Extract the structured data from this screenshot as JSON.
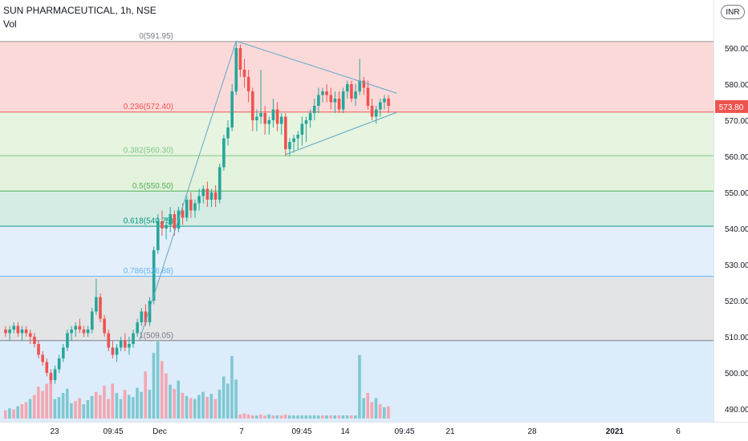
{
  "header": {
    "symbol": "SUN PHARMACEUTICAL, 1h, NSE",
    "volume_label": "Vol",
    "currency": "INR"
  },
  "colors": {
    "up": "#26a69a",
    "down": "#ef5350",
    "vol_up": "#7ec8d0",
    "vol_down": "#f4a6b0",
    "trendline": "#5fa8c8",
    "axis_text": "#131722",
    "last_price_bg": "#ef5350"
  },
  "chart_data": {
    "type": "candlestick",
    "y_axis": {
      "min": 488,
      "max": 595,
      "ticks": [
        "590.00",
        "580.00",
        "570.00",
        "560.00",
        "550.00",
        "540.00",
        "530.00",
        "520.00",
        "510.00",
        "500.00",
        "490.00"
      ]
    },
    "x_axis": {
      "ticks": [
        "23",
        "09:45",
        "Dec",
        "7",
        "09:45",
        "14",
        "09:45",
        "21",
        "28",
        "2021",
        "6"
      ]
    },
    "last_price": "573.80",
    "fib_levels": [
      {
        "label": "0(591.95)",
        "value": 591.95,
        "line": "#9e9e9e",
        "fill": "#fcd9d9",
        "text_color": "#787b86"
      },
      {
        "label": "0.236(572.40)",
        "value": 572.4,
        "line": "#ef5350",
        "fill": "#e6f4e0",
        "text_color": "#ef5350"
      },
      {
        "label": "0.382(560.30)",
        "value": 560.3,
        "line": "#81c784",
        "fill": "#e3f2dd",
        "text_color": "#81c784"
      },
      {
        "label": "0.5(550.50)",
        "value": 550.5,
        "line": "#4caf50",
        "fill": "#d4ece3",
        "text_color": "#4caf50"
      },
      {
        "label": "0.618(540.75)",
        "value": 540.75,
        "line": "#089981",
        "fill": "#e3effa",
        "text_color": "#089981"
      },
      {
        "label": "0.786(526.88)",
        "value": 526.88,
        "line": "#64b5f6",
        "fill": "#e3e4e6",
        "text_color": "#64b5f6"
      },
      {
        "label": "1(509.05)",
        "value": 509.05,
        "line": "#787b86",
        "fill": "#dcecfb",
        "text_color": "#787b86"
      }
    ],
    "candles": [
      [
        512,
        513,
        510,
        511
      ],
      [
        511,
        513,
        509,
        512
      ],
      [
        512,
        514,
        511,
        513
      ],
      [
        513,
        514,
        510,
        511
      ],
      [
        511,
        513,
        509,
        512
      ],
      [
        512,
        513,
        510,
        511
      ],
      [
        511,
        512,
        508,
        510
      ],
      [
        510,
        511,
        507,
        508
      ],
      [
        508,
        509,
        504,
        505
      ],
      [
        505,
        506,
        502,
        503
      ],
      [
        503,
        504,
        499,
        500
      ],
      [
        500,
        501,
        497,
        498
      ],
      [
        498,
        502,
        497,
        501
      ],
      [
        501,
        505,
        500,
        504
      ],
      [
        504,
        508,
        503,
        507
      ],
      [
        507,
        512,
        506,
        511
      ],
      [
        511,
        513,
        509,
        512
      ],
      [
        512,
        514,
        510,
        513
      ],
      [
        513,
        515,
        511,
        512
      ],
      [
        512,
        513,
        510,
        511
      ],
      [
        511,
        513,
        510,
        512
      ],
      [
        512,
        518,
        511,
        517
      ],
      [
        517,
        526,
        516,
        521
      ],
      [
        521,
        522,
        514,
        515
      ],
      [
        515,
        516,
        510,
        511
      ],
      [
        511,
        512,
        506,
        507
      ],
      [
        507,
        509,
        504,
        505
      ],
      [
        505,
        508,
        503,
        507
      ],
      [
        507,
        510,
        506,
        509
      ],
      [
        509,
        511,
        506,
        507
      ],
      [
        507,
        510,
        505,
        508
      ],
      [
        508,
        512,
        507,
        511
      ],
      [
        511,
        515,
        510,
        514
      ],
      [
        514,
        518,
        513,
        517
      ],
      [
        517,
        519,
        513,
        514
      ],
      [
        514,
        521,
        513,
        520
      ],
      [
        520,
        535,
        519,
        534
      ],
      [
        534,
        544,
        533,
        542
      ],
      [
        542,
        545,
        538,
        540
      ],
      [
        540,
        543,
        537,
        541
      ],
      [
        541,
        546,
        539,
        544
      ],
      [
        544,
        545,
        538,
        540
      ],
      [
        540,
        546,
        539,
        545
      ],
      [
        545,
        547,
        541,
        543
      ],
      [
        543,
        549,
        542,
        548
      ],
      [
        548,
        550,
        543,
        545
      ],
      [
        545,
        548,
        543,
        547
      ],
      [
        547,
        551,
        545,
        549
      ],
      [
        549,
        552,
        547,
        551
      ],
      [
        551,
        553,
        546,
        548
      ],
      [
        548,
        551,
        546,
        550
      ],
      [
        550,
        552,
        546,
        548
      ],
      [
        548,
        558,
        547,
        557
      ],
      [
        557,
        566,
        556,
        565
      ],
      [
        565,
        570,
        563,
        568
      ],
      [
        568,
        580,
        567,
        578
      ],
      [
        578,
        592,
        577,
        590
      ],
      [
        590,
        591,
        582,
        584
      ],
      [
        584,
        587,
        579,
        582
      ],
      [
        582,
        584,
        575,
        578
      ],
      [
        578,
        579,
        567,
        570
      ],
      [
        570,
        573,
        567,
        571
      ],
      [
        571,
        584,
        569,
        572
      ],
      [
        572,
        574,
        566,
        569
      ],
      [
        569,
        571,
        566,
        570
      ],
      [
        570,
        576,
        568,
        573
      ],
      [
        573,
        575,
        567,
        569
      ],
      [
        569,
        572,
        566,
        571
      ],
      [
        571,
        572,
        560,
        562
      ],
      [
        562,
        565,
        560,
        564
      ],
      [
        564,
        566,
        561,
        565
      ],
      [
        565,
        567,
        562,
        566
      ],
      [
        566,
        571,
        563,
        569
      ],
      [
        569,
        571,
        564,
        570
      ],
      [
        570,
        573,
        568,
        572
      ],
      [
        572,
        576,
        570,
        574
      ],
      [
        574,
        579,
        572,
        577
      ],
      [
        577,
        579,
        575,
        578
      ],
      [
        578,
        580,
        575,
        577
      ],
      [
        577,
        579,
        573,
        575
      ],
      [
        575,
        578,
        572,
        576
      ],
      [
        576,
        578,
        572,
        573
      ],
      [
        573,
        579,
        572,
        578
      ],
      [
        578,
        581,
        576,
        580
      ],
      [
        580,
        581,
        575,
        576
      ],
      [
        576,
        580,
        574,
        578
      ],
      [
        578,
        587,
        577,
        581
      ],
      [
        581,
        582,
        577,
        579
      ],
      [
        579,
        581,
        573,
        574
      ],
      [
        574,
        576,
        570,
        571
      ],
      [
        571,
        574,
        569,
        573
      ],
      [
        573,
        576,
        571,
        575
      ],
      [
        575,
        577,
        573,
        576
      ],
      [
        576,
        577,
        572,
        574
      ]
    ],
    "volumes": [
      [
        0.8,
        "d"
      ],
      [
        1.0,
        "u"
      ],
      [
        0.9,
        "d"
      ],
      [
        1.2,
        "u"
      ],
      [
        1.4,
        "d"
      ],
      [
        1.6,
        "d"
      ],
      [
        1.9,
        "u"
      ],
      [
        2.3,
        "d"
      ],
      [
        3.1,
        "d"
      ],
      [
        2.7,
        "d"
      ],
      [
        3.4,
        "d"
      ],
      [
        4.2,
        "d"
      ],
      [
        1.9,
        "u"
      ],
      [
        2.1,
        "u"
      ],
      [
        2.5,
        "u"
      ],
      [
        2.9,
        "u"
      ],
      [
        1.5,
        "u"
      ],
      [
        1.7,
        "d"
      ],
      [
        2.0,
        "d"
      ],
      [
        1.4,
        "u"
      ],
      [
        1.8,
        "u"
      ],
      [
        2.2,
        "u"
      ],
      [
        2.6,
        "d"
      ],
      [
        2.3,
        "d"
      ],
      [
        3.2,
        "d"
      ],
      [
        1.9,
        "d"
      ],
      [
        3.4,
        "d"
      ],
      [
        2.5,
        "u"
      ],
      [
        1.9,
        "u"
      ],
      [
        2.8,
        "d"
      ],
      [
        2.3,
        "u"
      ],
      [
        2.1,
        "u"
      ],
      [
        3.0,
        "u"
      ],
      [
        2.6,
        "u"
      ],
      [
        4.6,
        "d"
      ],
      [
        2.8,
        "u"
      ],
      [
        6.4,
        "u"
      ],
      [
        7.5,
        "u"
      ],
      [
        5.6,
        "d"
      ],
      [
        4.4,
        "d"
      ],
      [
        3.3,
        "u"
      ],
      [
        2.9,
        "d"
      ],
      [
        3.7,
        "u"
      ],
      [
        2.5,
        "d"
      ],
      [
        2.2,
        "u"
      ],
      [
        2.0,
        "d"
      ],
      [
        1.9,
        "u"
      ],
      [
        2.3,
        "u"
      ],
      [
        2.6,
        "u"
      ],
      [
        2.1,
        "d"
      ],
      [
        2.4,
        "u"
      ],
      [
        1.9,
        "d"
      ],
      [
        2.8,
        "u"
      ],
      [
        4.1,
        "u"
      ],
      [
        3.4,
        "u"
      ],
      [
        6.1,
        "u"
      ],
      [
        3.8,
        "u"
      ],
      [
        0.4,
        "d"
      ],
      [
        0.5,
        "d"
      ],
      [
        0.4,
        "d"
      ],
      [
        0.3,
        "d"
      ],
      [
        0.3,
        "u"
      ],
      [
        0.4,
        "d"
      ],
      [
        0.3,
        "d"
      ],
      [
        0.4,
        "u"
      ],
      [
        0.3,
        "d"
      ],
      [
        0.3,
        "u"
      ],
      [
        0.3,
        "d"
      ],
      [
        0.4,
        "d"
      ],
      [
        0.3,
        "u"
      ],
      [
        0.3,
        "u"
      ],
      [
        0.3,
        "u"
      ],
      [
        0.3,
        "u"
      ],
      [
        0.3,
        "u"
      ],
      [
        0.3,
        "u"
      ],
      [
        0.3,
        "u"
      ],
      [
        0.3,
        "u"
      ],
      [
        0.3,
        "d"
      ],
      [
        0.3,
        "u"
      ],
      [
        0.3,
        "d"
      ],
      [
        0.3,
        "u"
      ],
      [
        0.3,
        "d"
      ],
      [
        0.3,
        "u"
      ],
      [
        0.3,
        "u"
      ],
      [
        0.3,
        "d"
      ],
      [
        0.3,
        "u"
      ],
      [
        6.2,
        "u"
      ],
      [
        2.0,
        "u"
      ],
      [
        2.5,
        "d"
      ],
      [
        1.6,
        "d"
      ],
      [
        2.0,
        "u"
      ],
      [
        1.4,
        "d"
      ],
      [
        1.1,
        "u"
      ],
      [
        1.2,
        "d"
      ]
    ],
    "trendlines": [
      {
        "from": [
          32.5,
          509.05
        ],
        "to": [
          56,
          591.95
        ]
      },
      {
        "from": [
          56,
          591.95
        ],
        "to": [
          95,
          577.5
        ]
      },
      {
        "from": [
          68,
          560.5
        ],
        "to": [
          95,
          572.2
        ]
      }
    ]
  }
}
